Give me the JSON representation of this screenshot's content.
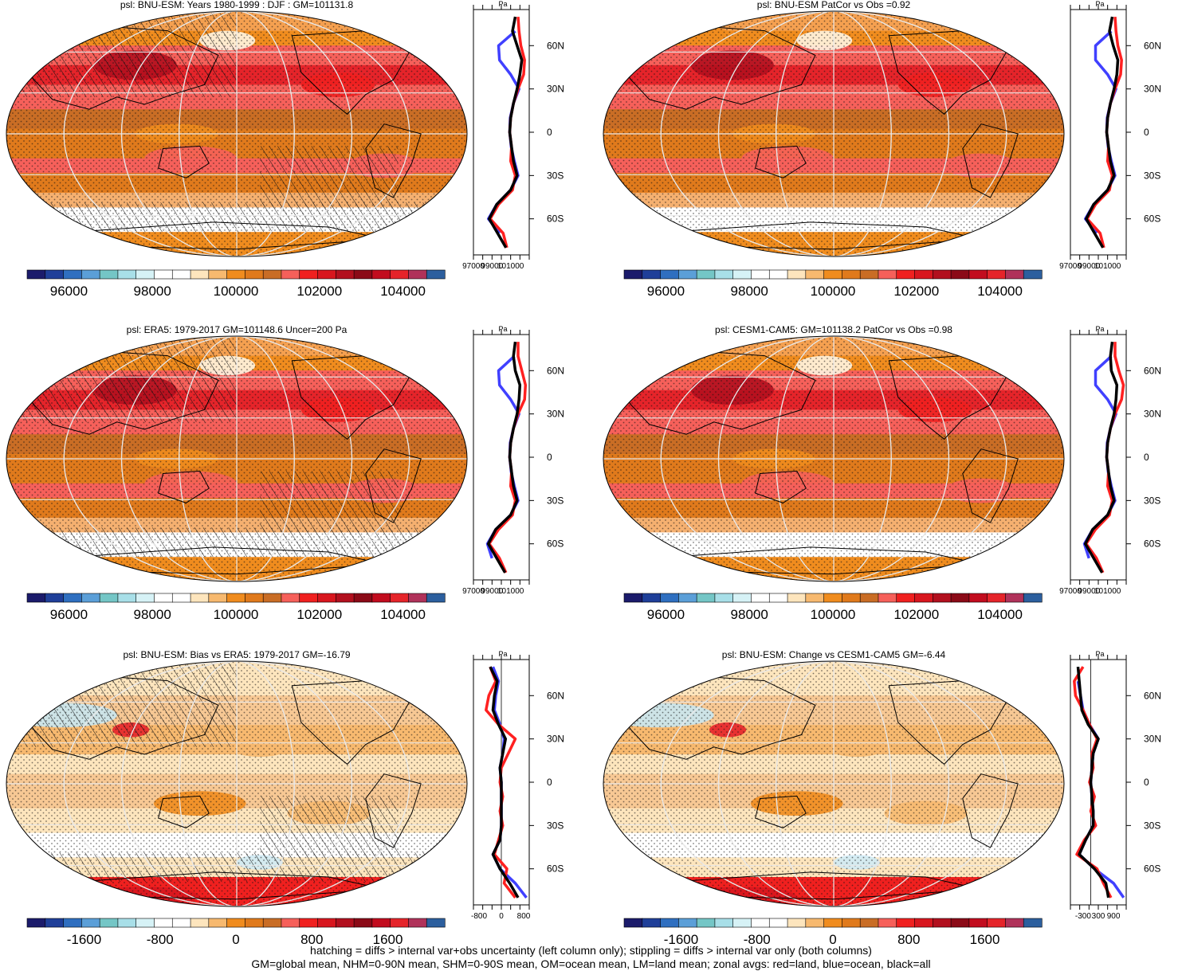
{
  "legend_colors": [
    "#1b1b6b",
    "#1f3f99",
    "#2f6fc0",
    "#5b9fd8",
    "#74c6c6",
    "#a8dfe8",
    "#d6f2f6",
    "#ffffff",
    "#ffffff",
    "#fde5bd",
    "#f7b96f",
    "#f08c1e",
    "#e07a1c",
    "#c96d25",
    "#f6605a",
    "#f0201f",
    "#d8161e",
    "#b2101e",
    "#8b0a17",
    "#c20c1e",
    "#e5242a",
    "#b0325a",
    "#2c5f9e"
  ],
  "ocean_color": "#4040ff",
  "land_color": "#ff2020",
  "all_color": "#000000",
  "chart_data": [
    {
      "type": "heatmap",
      "title": "psl: BNU-ESM: Years 1980-1999 : DJF : GM=101131.8",
      "variable": "psl",
      "units": "Pa",
      "colorbar_ticks": [
        "96000",
        "98000",
        "100000",
        "102000",
        "104000"
      ],
      "colorbar_range": [
        95000,
        105000
      ],
      "hatching": true,
      "zonal_avg": {
        "lat_ticks": [
          "60N",
          "30N",
          "0",
          "30S",
          "60S"
        ],
        "x_ticks": [
          "97000",
          "99000",
          "101000"
        ],
        "xlim": [
          97000,
          103000
        ],
        "series": [
          {
            "name": "all",
            "lat": [
              80,
              70,
              60,
              50,
              40,
              30,
              20,
              10,
              0,
              -10,
              -20,
              -30,
              -40,
              -50,
              -60,
              -70,
              -80
            ],
            "values": [
              101500,
              101200,
              101700,
              102200,
              102000,
              101700,
              101300,
              101000,
              100900,
              101100,
              101300,
              101700,
              101000,
              99500,
              98700,
              99600,
              100500
            ]
          },
          {
            "name": "ocean",
            "lat": [
              70,
              60,
              50,
              40,
              30,
              20,
              10,
              0,
              -10,
              -20,
              -30,
              -40,
              -50,
              -60,
              -70
            ],
            "values": [
              101500,
              99700,
              99800,
              101000,
              101900,
              101300,
              100950,
              100900,
              101050,
              101400,
              101800,
              101000,
              99500,
              98600,
              99800
            ]
          },
          {
            "name": "land",
            "lat": [
              80,
              70,
              60,
              50,
              40,
              30,
              20,
              10,
              0,
              -10,
              -20,
              -30,
              -40,
              -50,
              -60,
              -70,
              -80
            ],
            "values": [
              101800,
              101900,
              102100,
              102500,
              102400,
              101800,
              101300,
              101000,
              100900,
              101100,
              101000,
              101500,
              101200,
              99700,
              98800,
              100200,
              100600
            ]
          }
        ]
      }
    },
    {
      "type": "heatmap",
      "title": "psl: BNU-ESM PatCor vs Obs =0.92",
      "variable": "psl",
      "units": "Pa",
      "colorbar_ticks": [
        "96000",
        "98000",
        "100000",
        "102000",
        "104000"
      ],
      "colorbar_range": [
        95000,
        105000
      ],
      "hatching": false,
      "zonal_avg": {
        "lat_ticks": [
          "60N",
          "30N",
          "0",
          "30S",
          "60S"
        ],
        "x_ticks": [
          "97000",
          "99000",
          "101000"
        ],
        "xlim": [
          97000,
          103000
        ],
        "series": [
          {
            "name": "all",
            "lat": [
              80,
              70,
              60,
              50,
              40,
              30,
              20,
              10,
              0,
              -10,
              -20,
              -30,
              -40,
              -50,
              -60,
              -70,
              -80
            ],
            "values": [
              101500,
              101200,
              101600,
              102100,
              102000,
              101700,
              101300,
              101000,
              100900,
              101100,
              101300,
              101700,
              101000,
              99500,
              98700,
              99600,
              100500
            ]
          },
          {
            "name": "ocean",
            "lat": [
              70,
              60,
              50,
              40,
              30,
              20,
              10,
              0,
              -10,
              -20,
              -30,
              -40,
              -50,
              -60,
              -70
            ],
            "values": [
              101400,
              99700,
              99700,
              101000,
              101900,
              101300,
              100950,
              100900,
              101050,
              101400,
              101800,
              101000,
              99500,
              98600,
              99800
            ]
          },
          {
            "name": "land",
            "lat": [
              80,
              70,
              60,
              50,
              40,
              30,
              20,
              10,
              0,
              -10,
              -20,
              -30,
              -40,
              -50,
              -60,
              -70,
              -80
            ],
            "values": [
              101800,
              101900,
              102100,
              102500,
              102400,
              101800,
              101300,
              101000,
              100900,
              101100,
              101000,
              101500,
              101200,
              99700,
              98800,
              100200,
              100600
            ]
          }
        ]
      }
    },
    {
      "type": "heatmap",
      "title": "psl: ERA5: 1979-2017 GM=101148.6 Uncer=200 Pa",
      "variable": "psl",
      "units": "Pa",
      "colorbar_ticks": [
        "96000",
        "98000",
        "100000",
        "102000",
        "104000"
      ],
      "colorbar_range": [
        95000,
        105000
      ],
      "hatching": true,
      "zonal_avg": {
        "lat_ticks": [
          "60N",
          "30N",
          "0",
          "30S",
          "60S"
        ],
        "x_ticks": [
          "97000",
          "99000",
          "101000"
        ],
        "xlim": [
          97000,
          103000
        ],
        "series": [
          {
            "name": "all",
            "lat": [
              80,
              70,
              60,
              50,
              40,
              30,
              20,
              10,
              0,
              -10,
              -20,
              -30,
              -40,
              -50,
              -60,
              -70,
              -80
            ],
            "values": [
              101500,
              101300,
              101500,
              102000,
              101900,
              101700,
              101300,
              101000,
              100900,
              101100,
              101300,
              101700,
              101000,
              99400,
              98600,
              99500,
              100400
            ]
          },
          {
            "name": "ocean",
            "lat": [
              70,
              60,
              50,
              40,
              30,
              20,
              10,
              0,
              -10,
              -20,
              -30,
              -40,
              -50,
              -60,
              -70
            ],
            "values": [
              101400,
              99700,
              99800,
              101000,
              101900,
              101300,
              100950,
              100900,
              101050,
              101400,
              101800,
              101000,
              99400,
              98500,
              99000
            ]
          },
          {
            "name": "land",
            "lat": [
              80,
              70,
              60,
              50,
              40,
              30,
              20,
              10,
              0,
              -10,
              -20,
              -30,
              -40,
              -50,
              -60,
              -70,
              -80
            ],
            "values": [
              101800,
              101800,
              102200,
              102600,
              102500,
              101800,
              101300,
              101000,
              100900,
              101100,
              101000,
              101500,
              101200,
              99700,
              98700,
              99800,
              100500
            ]
          }
        ]
      }
    },
    {
      "type": "heatmap",
      "title": "psl: CESM1-CAM5: GM=101138.2 PatCor vs Obs =0.98",
      "variable": "psl",
      "units": "Pa",
      "colorbar_ticks": [
        "96000",
        "98000",
        "100000",
        "102000",
        "104000"
      ],
      "colorbar_range": [
        95000,
        105000
      ],
      "hatching": false,
      "zonal_avg": {
        "lat_ticks": [
          "60N",
          "30N",
          "0",
          "30S",
          "60S"
        ],
        "x_ticks": [
          "97000",
          "99000",
          "101000"
        ],
        "xlim": [
          97000,
          103000
        ],
        "series": [
          {
            "name": "all",
            "lat": [
              80,
              70,
              60,
              50,
              40,
              30,
              20,
              10,
              0,
              -10,
              -20,
              -30,
              -40,
              -50,
              -60,
              -70,
              -80
            ],
            "values": [
              101500,
              101300,
              101400,
              102000,
              101900,
              101700,
              101300,
              101000,
              100900,
              101100,
              101300,
              101700,
              101000,
              99400,
              98600,
              99500,
              100400
            ]
          },
          {
            "name": "ocean",
            "lat": [
              70,
              60,
              50,
              40,
              30,
              20,
              10,
              0,
              -10,
              -20,
              -30,
              -40,
              -50,
              -60,
              -70
            ],
            "values": [
              101400,
              99700,
              99700,
              101000,
              101900,
              101300,
              100950,
              100900,
              101050,
              101400,
              101800,
              101000,
              99400,
              98500,
              99000
            ]
          },
          {
            "name": "land",
            "lat": [
              80,
              70,
              60,
              50,
              40,
              30,
              20,
              10,
              0,
              -10,
              -20,
              -30,
              -40,
              -50,
              -60,
              -70,
              -80
            ],
            "values": [
              101800,
              101800,
              102200,
              102700,
              102500,
              101800,
              101300,
              101000,
              100900,
              101100,
              101000,
              101500,
              101200,
              99700,
              98700,
              99800,
              100500
            ]
          }
        ]
      }
    },
    {
      "type": "heatmap",
      "title": "psl: BNU-ESM: Bias vs ERA5: 1979-2017 GM=-16.79",
      "variable": "psl",
      "units": "Pa",
      "colorbar_ticks": [
        "-1600",
        "-800",
        "0",
        "800",
        "1600"
      ],
      "colorbar_range": [
        -2200,
        2200
      ],
      "hatching": true,
      "zonal_avg": {
        "lat_ticks": [
          "60N",
          "30N",
          "0",
          "30S",
          "60S"
        ],
        "x_ticks": [
          "-800",
          "0",
          "800"
        ],
        "xlim": [
          -1000,
          1000
        ],
        "series": [
          {
            "name": "all",
            "lat": [
              80,
              70,
              60,
              50,
              40,
              30,
              20,
              10,
              0,
              -10,
              -20,
              -30,
              -40,
              -50,
              -60,
              -70,
              -80
            ],
            "values": [
              -400,
              -150,
              -250,
              -300,
              -100,
              150,
              50,
              -50,
              0,
              0,
              0,
              0,
              -50,
              -300,
              -50,
              300,
              600
            ]
          },
          {
            "name": "ocean",
            "lat": [
              80,
              70,
              60,
              50,
              40,
              30,
              20,
              10,
              0,
              -10,
              -20,
              -30,
              -40,
              -50,
              -60,
              -70,
              -80
            ],
            "values": [
              -300,
              -100,
              -200,
              -250,
              -50,
              100,
              50,
              -50,
              0,
              0,
              0,
              0,
              -50,
              -300,
              -50,
              500,
              900
            ]
          },
          {
            "name": "land",
            "lat": [
              80,
              70,
              60,
              50,
              40,
              30,
              20,
              10,
              0,
              -10,
              -20,
              -30,
              -40,
              -50,
              -60,
              -70,
              -80
            ],
            "values": [
              -400,
              -200,
              -450,
              -550,
              -100,
              500,
              250,
              0,
              -50,
              50,
              -50,
              50,
              -100,
              -250,
              200,
              100,
              500
            ]
          }
        ]
      }
    },
    {
      "type": "heatmap",
      "title": "psl: BNU-ESM: Change vs CESM1-CAM5 GM=-6.44",
      "variable": "psl",
      "units": "Pa",
      "colorbar_ticks": [
        "-1600",
        "-800",
        "0",
        "800",
        "1600"
      ],
      "colorbar_range": [
        -2200,
        2200
      ],
      "hatching": false,
      "zonal_avg": {
        "lat_ticks": [
          "60N",
          "30N",
          "0",
          "30S",
          "60S"
        ],
        "x_ticks": [
          "-300",
          "300",
          "900"
        ],
        "xlim": [
          -800,
          1400
        ],
        "series": [
          {
            "name": "all",
            "lat": [
              80,
              70,
              60,
              50,
              40,
              30,
              20,
              10,
              0,
              -10,
              -20,
              -30,
              -40,
              -50,
              -60,
              -70,
              -80
            ],
            "values": [
              -500,
              -450,
              -400,
              -350,
              -100,
              300,
              100,
              50,
              0,
              50,
              100,
              100,
              -200,
              -450,
              150,
              600,
              700
            ]
          },
          {
            "name": "ocean",
            "lat": [
              70,
              60,
              50,
              40,
              30,
              20,
              10,
              0,
              -10,
              -20,
              -30,
              -40,
              -50,
              -60,
              -70,
              -80
            ],
            "values": [
              -500,
              -400,
              -300,
              -50,
              300,
              100,
              50,
              0,
              50,
              100,
              100,
              -200,
              -450,
              150,
              900,
              1300
            ]
          },
          {
            "name": "land",
            "lat": [
              80,
              70,
              60,
              50,
              40,
              30,
              20,
              10,
              0,
              -10,
              -20,
              -30,
              -40,
              -50,
              -60,
              -70,
              -80
            ],
            "values": [
              -300,
              -650,
              -600,
              -300,
              -50,
              250,
              50,
              100,
              -50,
              150,
              0,
              200,
              -250,
              -550,
              250,
              500,
              800
            ]
          }
        ]
      }
    }
  ],
  "footer": {
    "line1": "hatching = diffs > internal var+obs uncertainty (left column only); stippling = diffs > internal var only (both columns)",
    "line2": "GM=global mean, NHM=0-90N mean, SHM=0-90S mean, OM=ocean mean, LM=land mean; zonal avgs: red=land, blue=ocean, black=all"
  }
}
